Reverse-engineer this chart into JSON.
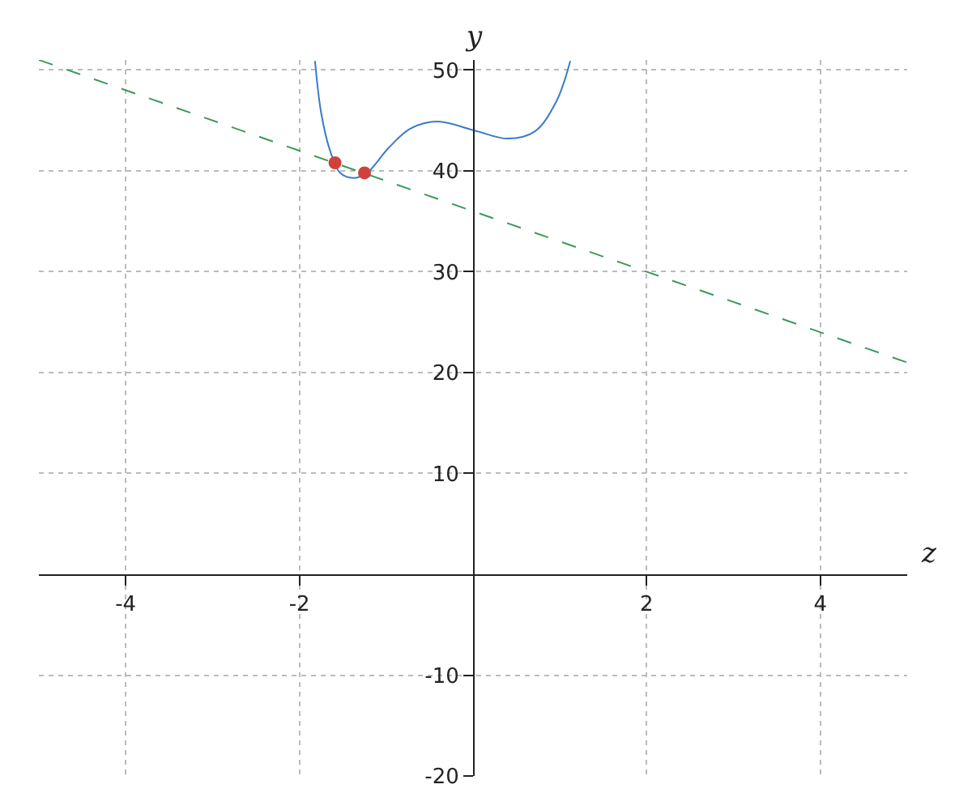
{
  "chart_data": {
    "type": "line",
    "xlabel": "z",
    "ylabel": "y",
    "xlim": [
      -5,
      5
    ],
    "ylim": [
      -20,
      51
    ],
    "xticks": [
      -4,
      -2,
      2,
      4
    ],
    "yticks": [
      -20,
      -10,
      10,
      20,
      30,
      40,
      50
    ],
    "grid": true,
    "series": [
      {
        "color": "#3a7bc8",
        "line_style": "solid",
        "marker": "none",
        "x": [
          -1.82,
          -1.75,
          -1.65,
          -1.53,
          -1.37,
          -1.22,
          -0.97,
          -0.72,
          -0.41,
          0.02,
          0.4,
          0.71,
          0.96,
          1.12
        ],
        "values": [
          50.9,
          45.8,
          42.1,
          39.8,
          39.3,
          39.8,
          42.3,
          44.2,
          44.9,
          44.0,
          43.2,
          43.9,
          46.9,
          50.9
        ]
      },
      {
        "type": "line",
        "color": "#3a9a5a",
        "line_style": "dashed",
        "marker": "none",
        "x": [
          -5,
          5
        ],
        "values": [
          51,
          21
        ]
      },
      {
        "type": "scatter",
        "color": "#d0413a",
        "marker": "circle",
        "x": [
          -1.59,
          -1.25
        ],
        "values": [
          40.8,
          39.8
        ]
      }
    ]
  }
}
